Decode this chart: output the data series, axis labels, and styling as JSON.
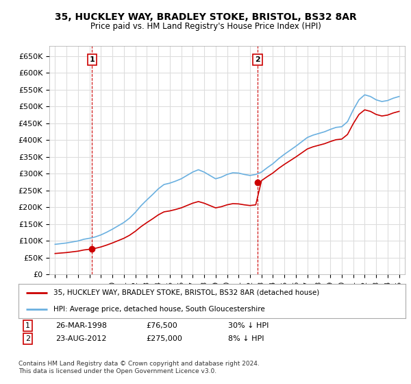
{
  "title_line1": "35, HUCKLEY WAY, BRADLEY STOKE, BRISTOL, BS32 8AR",
  "title_line2": "Price paid vs. HM Land Registry's House Price Index (HPI)",
  "sale1_date_num": 1998.23,
  "sale1_price": 76500,
  "sale1_label": "1",
  "sale2_date_num": 2012.65,
  "sale2_price": 275000,
  "sale2_label": "2",
  "hpi_color": "#6ab0e0",
  "price_color": "#cc0000",
  "dot_color": "#cc0000",
  "grid_color": "#dddddd",
  "legend_line1": "35, HUCKLEY WAY, BRADLEY STOKE, BRISTOL, BS32 8AR (detached house)",
  "legend_line2": "HPI: Average price, detached house, South Gloucestershire",
  "table_row1": [
    "1",
    "26-MAR-1998",
    "£76,500",
    "30% ↓ HPI"
  ],
  "table_row2": [
    "2",
    "23-AUG-2012",
    "£275,000",
    "8% ↓ HPI"
  ],
  "footer": "Contains HM Land Registry data © Crown copyright and database right 2024.\nThis data is licensed under the Open Government Licence v3.0.",
  "ylim_min": 0,
  "ylim_max": 680000,
  "yticks": [
    0,
    50000,
    100000,
    150000,
    200000,
    250000,
    300000,
    350000,
    400000,
    450000,
    500000,
    550000,
    600000,
    650000
  ],
  "xlim_min": 1994.5,
  "xlim_max": 2025.5
}
